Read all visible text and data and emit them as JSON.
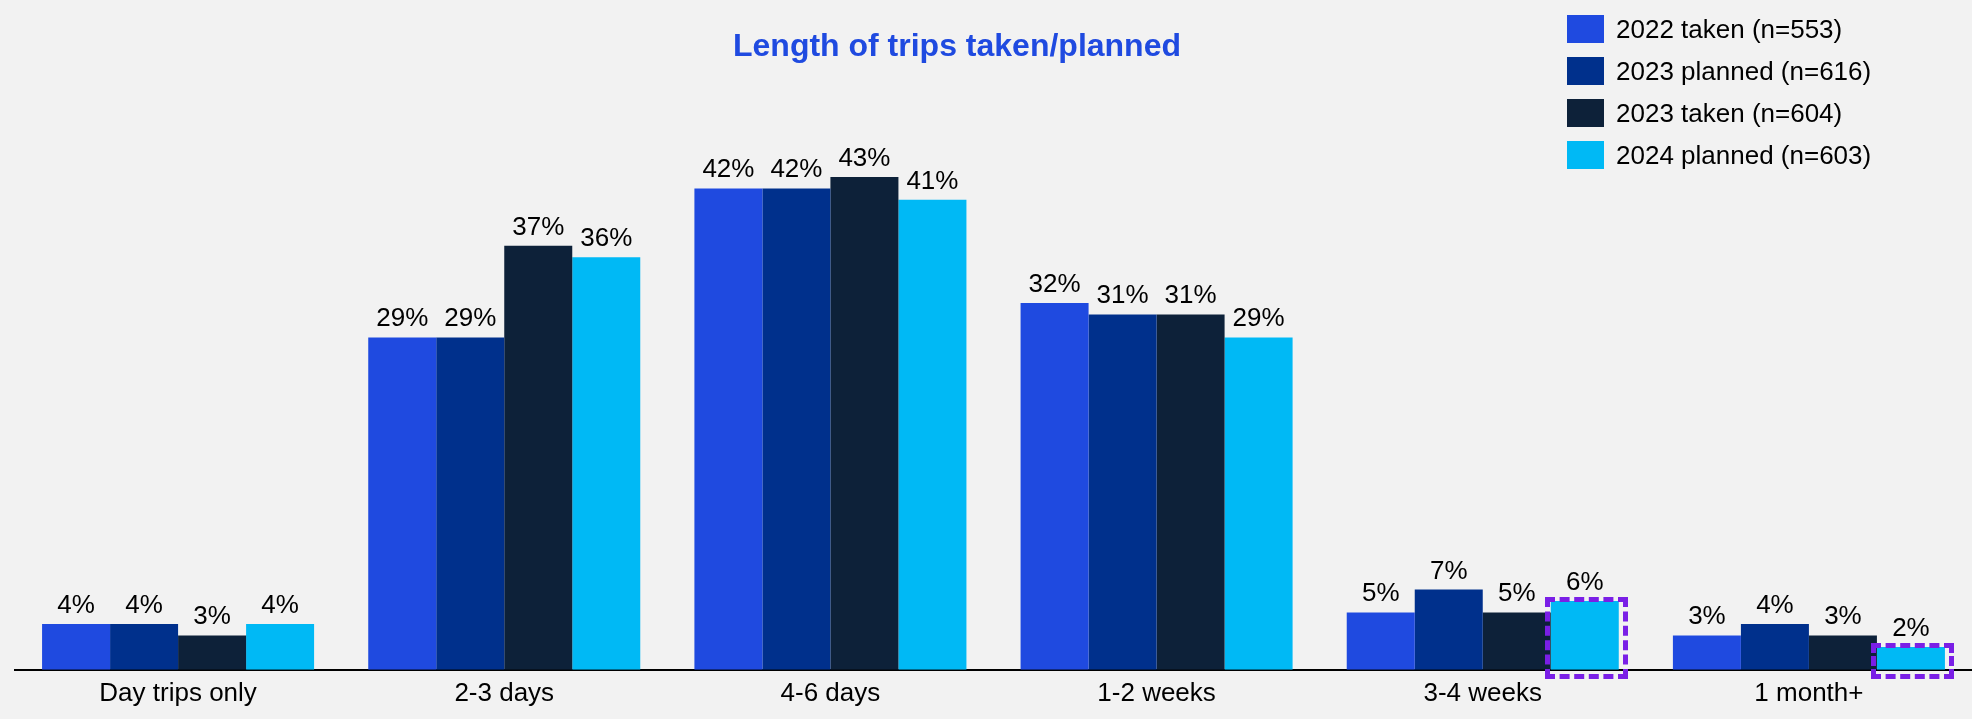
{
  "chart_data": {
    "type": "bar",
    "title": "Length of trips taken/planned",
    "categories": [
      "Day trips only",
      "2-3 days",
      "4-6 days",
      "1-2 weeks",
      "3-4 weeks",
      "1 month+"
    ],
    "series": [
      {
        "name": "2022 taken (n=553)",
        "color": "#1f4ae0",
        "values": [
          4,
          29,
          42,
          32,
          5,
          3
        ],
        "value_labels": [
          "4%",
          "29%",
          "42%",
          "32%",
          "5%",
          "3%"
        ]
      },
      {
        "name": "2023 planned (n=616)",
        "color": "#00308c",
        "values": [
          4,
          29,
          42,
          31,
          7,
          4
        ],
        "value_labels": [
          "4%",
          "29%",
          "42%",
          "31%",
          "7%",
          "4%"
        ]
      },
      {
        "name": "2023 taken (n=604)",
        "color": "#0d2139",
        "values": [
          3,
          37,
          43,
          31,
          5,
          3
        ],
        "value_labels": [
          "3%",
          "37%",
          "43%",
          "31%",
          "5%",
          "3%"
        ]
      },
      {
        "name": "2024 planned (n=603)",
        "color": "#00b9f5",
        "values": [
          4,
          36,
          41,
          29,
          6,
          2
        ],
        "value_labels": [
          "4%",
          "36%",
          "41%",
          "29%",
          "6%",
          "2%"
        ]
      }
    ],
    "legend": "top right",
    "tick_labels": "x"
  }
}
